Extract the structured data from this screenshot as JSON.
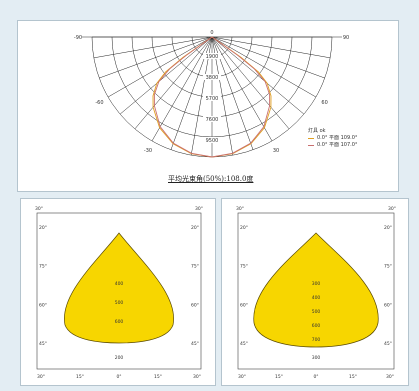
{
  "chart_data": [
    {
      "type": "polar",
      "angle_labels_left": [
        "-90",
        "-60",
        "-30"
      ],
      "angle_labels_right": [
        "90",
        "60",
        "30"
      ],
      "angle_label_top": "0",
      "radial_ticks": [
        "1900",
        "3800",
        "5700",
        "7600",
        "9500"
      ],
      "rmax": 9500,
      "legend_title": "灯具 ok",
      "series": [
        {
          "name": "0.0° 平面 109.0°",
          "color": "#e0a020",
          "curve": [
            [
              0,
              9500
            ],
            [
              10,
              9380
            ],
            [
              20,
              9000
            ],
            [
              30,
              8300
            ],
            [
              40,
              7250
            ],
            [
              45,
              6600
            ],
            [
              50,
              5700
            ],
            [
              53,
              4600
            ],
            [
              55,
              2800
            ],
            [
              56,
              0
            ]
          ]
        },
        {
          "name": "0.0° 平面 107.0°",
          "color": "#c96f6f",
          "curve": [
            [
              0,
              9500
            ],
            [
              10,
              9350
            ],
            [
              20,
              8950
            ],
            [
              30,
              8200
            ],
            [
              40,
              7100
            ],
            [
              45,
              6450
            ],
            [
              50,
              5500
            ],
            [
              53,
              4200
            ],
            [
              54.5,
              2500
            ],
            [
              55.5,
              0
            ]
          ]
        }
      ],
      "caption": "平均光束角(50%):108.0度"
    },
    {
      "type": "isolux",
      "fill": "#f7d600",
      "corner_labels": {
        "tl": "30°",
        "tr": "30°",
        "bl": "30°",
        "br": "30°"
      },
      "left_ticks": [
        "20°",
        "75°",
        "60°",
        "45°"
      ],
      "right_ticks": [
        "20°",
        "75°",
        "60°",
        "45°"
      ],
      "bottom_ticks": [
        "30°",
        "15°",
        "0°",
        "15°",
        "30°"
      ],
      "inner_labels": [
        "400",
        "500",
        "600"
      ],
      "below_label": "200"
    },
    {
      "type": "isolux",
      "fill": "#f7d600",
      "corner_labels": {
        "tl": "30°",
        "tr": "30°",
        "bl": "30°",
        "br": "30°"
      },
      "left_ticks": [
        "20°",
        "75°",
        "60°",
        "45°"
      ],
      "right_ticks": [
        "20°",
        "75°",
        "60°",
        "45°"
      ],
      "bottom_ticks": [
        "30°",
        "15°",
        "0°",
        "15°",
        "30°"
      ],
      "inner_labels": [
        "300",
        "400",
        "500",
        "600",
        "700"
      ],
      "below_label": "300"
    }
  ]
}
